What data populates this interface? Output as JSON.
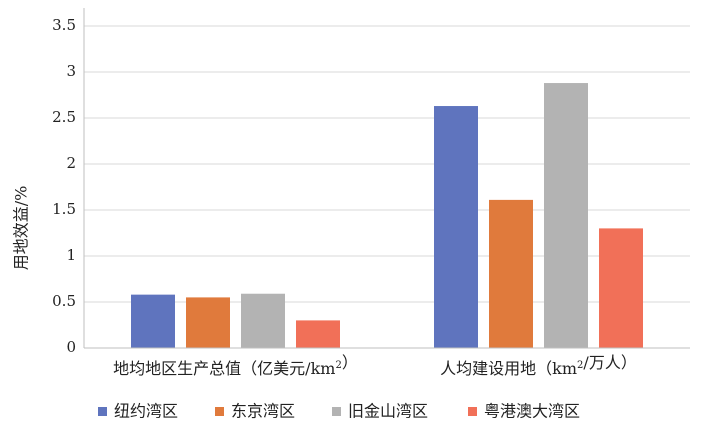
{
  "chart_data": {
    "type": "bar",
    "title": "",
    "xlabel": "",
    "ylabel": "用地效益/%",
    "ylim": [
      0,
      3.5
    ],
    "yticks": [
      "0",
      "0.5",
      "1",
      "1.5",
      "2",
      "2.5",
      "3",
      "3.5"
    ],
    "grid": true,
    "legend_position": "bottom",
    "categories": [
      "地均地区生产总值（亿美元/km²）",
      "人均建设用地（km²/万人）"
    ],
    "series": [
      {
        "name": "纽约湾区",
        "color": "#5F74BE",
        "values": [
          0.58,
          2.63
        ]
      },
      {
        "name": "东京湾区",
        "color": "#E07A3C",
        "values": [
          0.55,
          1.61
        ]
      },
      {
        "name": "旧金山湾区",
        "color": "#B3B3B3",
        "values": [
          0.59,
          2.88
        ]
      },
      {
        "name": "粤港澳大湾区",
        "color": "#F17058",
        "values": [
          0.3,
          1.3
        ]
      }
    ]
  }
}
